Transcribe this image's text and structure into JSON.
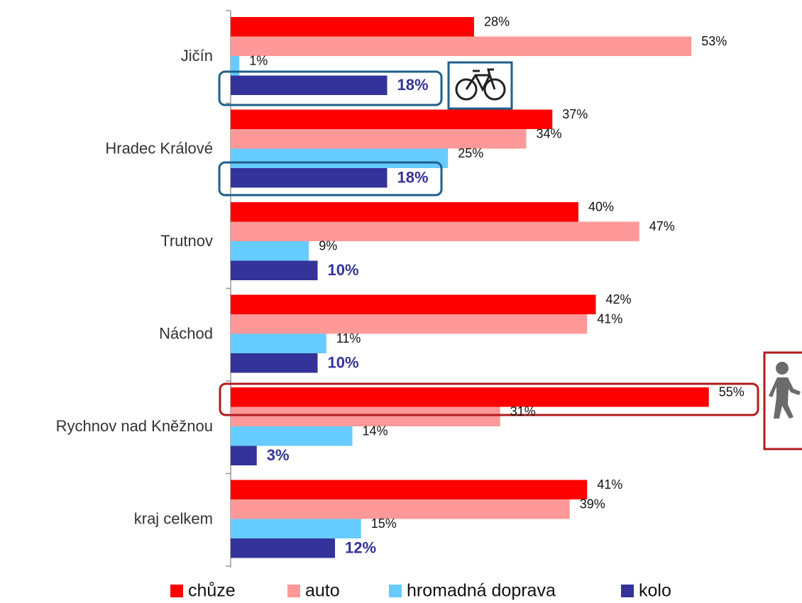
{
  "chart_data": {
    "type": "bar",
    "orientation": "horizontal",
    "categories": [
      "Jičín",
      "Hradec Králové",
      "Trutnov",
      "Náchod",
      "Rychnov nad Kněžnou",
      "kraj celkem"
    ],
    "series": [
      {
        "name": "chůze",
        "color": "#ff0000",
        "values": [
          28,
          37,
          40,
          42,
          55,
          41
        ],
        "value_labels": [
          "28%",
          "37%",
          "40%",
          "42%",
          "55%",
          "41%"
        ]
      },
      {
        "name": "auto",
        "color": "#ff9999",
        "values": [
          53,
          34,
          47,
          41,
          31,
          39
        ],
        "value_labels": [
          "53%",
          "34%",
          "47%",
          "41%",
          "31%",
          "39%"
        ]
      },
      {
        "name": "hromadná doprava",
        "color": "#66ccff",
        "values": [
          1,
          25,
          9,
          11,
          14,
          15
        ],
        "value_labels": [
          "1%",
          "25%",
          "9%",
          "11%",
          "14%",
          "15%"
        ]
      },
      {
        "name": "kolo",
        "color": "#333399",
        "values": [
          18,
          18,
          10,
          10,
          3,
          12
        ],
        "value_labels": [
          "18%",
          "18%",
          "10%",
          "10%",
          "3%",
          "12%"
        ]
      }
    ],
    "xlim": [
      0,
      65
    ]
  }
}
